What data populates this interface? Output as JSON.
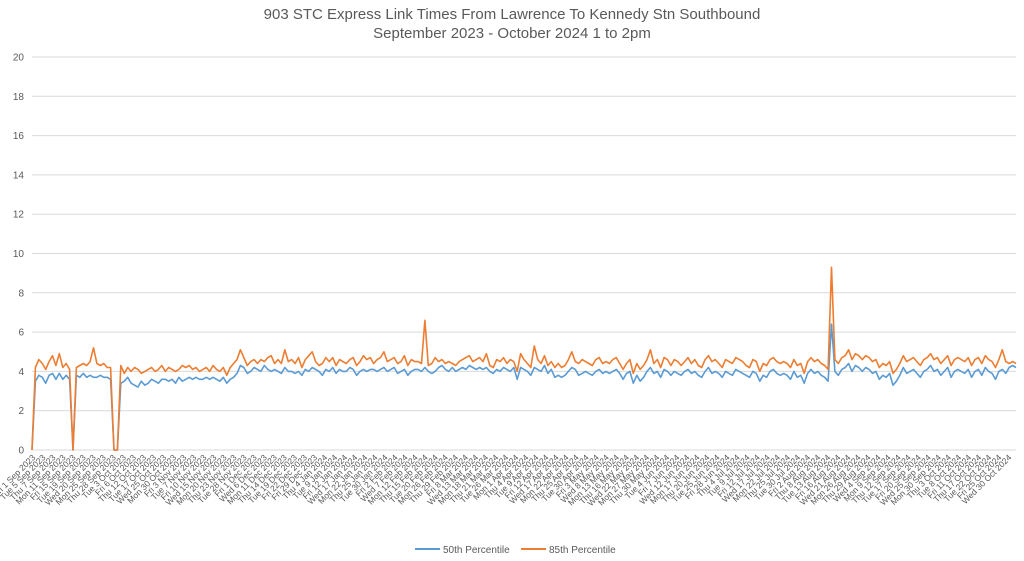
{
  "chart_data": {
    "type": "line",
    "title": "903 STC Express Link Times From Lawrence To Kennedy Stn Southbound",
    "subtitle": "September 2023 - October 2024 1 to 2pm",
    "xlabel": "",
    "ylabel": "",
    "ylim": [
      0,
      20
    ],
    "yticks": [
      "0",
      "2",
      "4",
      "6",
      "8",
      "10",
      "12",
      "14",
      "16",
      "18",
      "20"
    ],
    "grid": true,
    "legend_position": "bottom",
    "x_tick_labels": [
      "Fri 1 Sep 2023",
      "Tue 5 Sep 2023",
      "Thu 7 Sep 2023",
      "Mon 11 Sep 2023",
      "Fri 15 Sep 2023",
      "Tue 19 Sep 2023",
      "Wed 20 Sep 2023",
      "Mon 25 Sep 2023",
      "Thu 28 Sep 2023",
      "Tue 3 Oct 2023",
      "Fri 6 Oct 2023",
      "Thu 12 Oct 2023",
      "Tue 17 Oct 2023",
      "Wed 25 Oct 2023",
      "Mon 30 Oct 2023",
      "Fri 3 Nov 2023",
      "Tue 7 Nov 2023",
      "Fri 10 Nov 2023",
      "Wed 15 Nov 2023",
      "Mon 20 Nov 2023",
      "Thu 23 Nov 2023",
      "Tue 28 Nov 2023",
      "Fri 1 Dec 2023",
      "Wed 6 Dec 2023",
      "Mon 11 Dec 2023",
      "Thu 14 Dec 2023",
      "Tue 19 Dec 2023",
      "Fri 22 Dec 2023",
      "Fri 29 Dec 2023",
      "Thu 4 Jan 2024",
      "Tue 9 Jan 2024",
      "Fri 12 Jan 2024",
      "Wed 17 Jan 2024",
      "Mon 22 Jan 2024",
      "Thu 25 Jan 2024",
      "Tue 30 Jan 2024",
      "Fri 2 Feb 2024",
      "Wed 7 Feb 2024",
      "Mon 12 Feb 2024",
      "Thu 15 Feb 2024",
      "Tue 20 Feb 2024",
      "Mon 26 Feb 2024",
      "Thu 29 Feb 2024",
      "Fri 8 Mar 2024",
      "Wed 13 Mar 2024",
      "Mon 18 Mar 2024",
      "Thu 21 Mar 2024",
      "Tue 26 Mar 2024",
      "Mon 1 Apr 2024",
      "Thu 4 Apr 2024",
      "Tue 9 Apr 2024",
      "Fri 12 Apr 2024",
      "Wed 17 Apr 2024",
      "Mon 22 Apr 2024",
      "Thu 25 Apr 2024",
      "Tue 30 Apr 2024",
      "Fri 3 May 2024",
      "Wed 8 May 2024",
      "Mon 13 May 2024",
      "Thu 16 May 2024",
      "Wed 22 May 2024",
      "Mon 27 May 2024",
      "Thu 30 May 2024",
      "Tue 4 Jun 2024",
      "Fri 7 Jun 2024",
      "Wed 12 Jun 2024",
      "Mon 17 Jun 2024",
      "Thu 20 Jun 2024",
      "Tue 25 Jun 2024",
      "Fri 28 Jun 2024",
      "Thu 4 Jul 2024",
      "Tue 9 Jul 2024",
      "Fri 12 Jul 2024",
      "Wed 17 Jul 2024",
      "Mon 22 Jul 2024",
      "Thu 25 Jul 2024",
      "Tue 30 Jul 2024",
      "Fri 2 Aug 2024",
      "Thu 8 Aug 2024",
      "Tue 13 Aug 2024",
      "Fri 16 Aug 2024",
      "Wed 21 Aug 2024",
      "Mon 26 Aug 2024",
      "Thu 29 Aug 2024",
      "Wed 4 Sep 2024",
      "Mon 9 Sep 2024",
      "Thu 12 Sep 2024",
      "Tue 17 Sep 2024",
      "Fri 20 Sep 2024",
      "Wed 25 Sep 2024",
      "Mon 30 Sep 2024",
      "Thu 3 Oct 2024",
      "Tue 8 Oct 2024",
      "Fri 11 Oct 2024",
      "Thu 17 Oct 2024",
      "Tue 22 Oct 2024",
      "Fri 25 Oct 2024",
      "Wed 30 Oct 2024"
    ],
    "series": [
      {
        "name": "50th Percentile",
        "color": "#5b9bd5",
        "values": [
          0,
          3.5,
          3.8,
          3.7,
          3.4,
          3.8,
          3.9,
          3.6,
          3.9,
          3.6,
          3.8,
          3.6,
          0,
          3.8,
          3.7,
          3.9,
          3.7,
          3.8,
          3.7,
          3.7,
          3.8,
          3.7,
          3.7,
          3.6,
          0,
          0,
          3.4,
          3.5,
          3.7,
          3.4,
          3.3,
          3.2,
          3.5,
          3.3,
          3.4,
          3.6,
          3.5,
          3.4,
          3.6,
          3.6,
          3.5,
          3.6,
          3.4,
          3.7,
          3.5,
          3.6,
          3.7,
          3.6,
          3.7,
          3.6,
          3.6,
          3.7,
          3.6,
          3.7,
          3.6,
          3.5,
          3.7,
          3.4,
          3.6,
          3.7,
          3.9,
          4.3,
          4.2,
          3.9,
          4.0,
          4.2,
          4.1,
          4.0,
          4.3,
          4.1,
          4.0,
          4.1,
          4.0,
          3.9,
          4.2,
          4.0,
          4.0,
          3.9,
          4.0,
          3.8,
          4.1,
          4.0,
          4.2,
          4.1,
          4.0,
          3.8,
          4.1,
          4.0,
          4.2,
          3.9,
          4.1,
          4.0,
          4.0,
          4.2,
          4.1,
          3.8,
          4.0,
          4.1,
          4.0,
          4.1,
          4.1,
          4.0,
          4.1,
          4.2,
          4.0,
          4.1,
          4.2,
          3.9,
          4.0,
          4.1,
          3.8,
          4.0,
          4.1,
          4.1,
          4.0,
          4.2,
          4.0,
          3.9,
          4.0,
          4.2,
          4.3,
          4.1,
          4.0,
          4.2,
          4.0,
          4.1,
          4.2,
          4.1,
          4.3,
          4.2,
          4.1,
          4.2,
          4.1,
          4.2,
          4.0,
          3.9,
          4.1,
          4.0,
          4.2,
          4.1,
          4.0,
          4.2,
          3.6,
          4.2,
          4.1,
          4.0,
          3.8,
          4.2,
          4.1,
          4.0,
          4.3,
          3.9,
          4.1,
          3.7,
          3.8,
          3.7,
          3.8,
          4.0,
          4.2,
          4.1,
          3.8,
          3.9,
          4.0,
          3.9,
          3.8,
          4.0,
          4.1,
          3.9,
          4.0,
          3.9,
          4.0,
          4.1,
          3.9,
          3.6,
          3.9,
          4.0,
          3.4,
          3.8,
          3.5,
          3.7,
          4.0,
          4.2,
          3.9,
          4.0,
          3.7,
          4.1,
          4.0,
          3.8,
          4.0,
          3.9,
          3.8,
          4.0,
          4.1,
          3.9,
          4.0,
          3.8,
          3.7,
          4.0,
          4.2,
          3.9,
          4.0,
          3.9,
          3.7,
          4.0,
          3.9,
          3.8,
          4.1,
          4.0,
          3.9,
          3.8,
          3.7,
          4.0,
          3.9,
          3.5,
          3.8,
          3.7,
          4.0,
          4.1,
          3.9,
          3.8,
          3.9,
          3.8,
          3.6,
          4.0,
          3.7,
          3.8,
          3.4,
          3.9,
          4.1,
          3.9,
          4.0,
          3.8,
          3.7,
          3.5,
          6.4,
          4.0,
          3.8,
          4.1,
          4.2,
          4.4,
          4.0,
          4.3,
          4.2,
          4.0,
          4.2,
          4.1,
          3.9,
          4.0,
          3.6,
          3.8,
          3.7,
          3.9,
          3.3,
          3.5,
          3.8,
          4.2,
          3.9,
          4.0,
          4.1,
          3.9,
          3.7,
          4.0,
          4.1,
          4.3,
          4.0,
          4.1,
          3.8,
          4.0,
          4.2,
          3.7,
          4.0,
          4.1,
          4.0,
          3.9,
          4.1,
          3.7,
          4.0,
          4.1,
          3.8,
          4.2,
          4.0,
          3.9,
          3.6,
          4.0,
          4.1,
          3.9,
          4.2,
          4.3,
          4.2
        ]
      },
      {
        "name": "85th Percentile",
        "color": "#ed7d31",
        "values": [
          0,
          4.2,
          4.6,
          4.4,
          4.1,
          4.5,
          4.8,
          4.3,
          4.9,
          4.2,
          4.4,
          4.1,
          0,
          4.2,
          4.3,
          4.4,
          4.3,
          4.5,
          5.2,
          4.4,
          4.3,
          4.4,
          4.2,
          4.2,
          0,
          0,
          4.3,
          3.9,
          4.2,
          4.0,
          4.2,
          4.1,
          3.9,
          4.0,
          4.1,
          4.2,
          4.0,
          4.1,
          4.3,
          4.0,
          4.2,
          4.1,
          4.0,
          4.1,
          4.3,
          4.2,
          4.3,
          4.1,
          4.2,
          4.0,
          4.1,
          4.2,
          4.0,
          4.3,
          4.1,
          4.0,
          4.2,
          3.8,
          4.2,
          4.4,
          4.6,
          5.1,
          4.7,
          4.3,
          4.5,
          4.6,
          4.4,
          4.6,
          4.5,
          4.7,
          4.8,
          4.4,
          4.6,
          4.4,
          5.1,
          4.5,
          4.6,
          4.4,
          4.7,
          4.2,
          4.6,
          4.8,
          5.0,
          4.5,
          4.3,
          4.4,
          4.7,
          4.5,
          4.7,
          4.3,
          4.6,
          4.5,
          4.4,
          4.6,
          4.7,
          4.3,
          4.5,
          4.8,
          4.6,
          4.7,
          4.4,
          4.6,
          4.7,
          5.0,
          4.5,
          4.6,
          4.7,
          4.4,
          4.5,
          4.8,
          4.3,
          4.6,
          4.5,
          4.5,
          4.4,
          6.6,
          4.3,
          4.4,
          4.7,
          4.5,
          4.6,
          4.4,
          4.5,
          4.4,
          4.3,
          4.5,
          4.6,
          4.7,
          4.8,
          4.5,
          4.6,
          4.7,
          4.5,
          4.9,
          4.3,
          4.2,
          4.6,
          4.5,
          4.7,
          4.4,
          4.6,
          4.5,
          4.0,
          4.9,
          4.6,
          4.4,
          4.2,
          5.3,
          4.6,
          4.4,
          4.8,
          4.3,
          4.5,
          4.2,
          4.4,
          4.2,
          4.3,
          4.6,
          5.0,
          4.5,
          4.4,
          4.6,
          4.5,
          4.4,
          4.3,
          4.6,
          4.7,
          4.4,
          4.5,
          4.4,
          4.6,
          4.7,
          4.4,
          4.1,
          4.4,
          4.6,
          3.9,
          4.4,
          4.1,
          4.3,
          4.6,
          5.1,
          4.4,
          4.6,
          4.2,
          4.7,
          4.6,
          4.3,
          4.6,
          4.5,
          4.3,
          4.5,
          4.7,
          4.4,
          4.6,
          4.3,
          4.2,
          4.6,
          4.8,
          4.5,
          4.6,
          4.4,
          4.2,
          4.6,
          4.5,
          4.4,
          4.7,
          4.6,
          4.5,
          4.3,
          4.2,
          4.6,
          4.5,
          4.0,
          4.4,
          4.3,
          4.6,
          4.7,
          4.5,
          4.4,
          4.5,
          4.4,
          4.2,
          4.6,
          4.3,
          4.4,
          3.9,
          4.5,
          4.7,
          4.5,
          4.6,
          4.4,
          4.3,
          4.1,
          9.3,
          4.6,
          4.4,
          4.7,
          4.8,
          5.1,
          4.6,
          4.9,
          4.8,
          4.6,
          4.8,
          4.7,
          4.5,
          4.6,
          4.2,
          4.4,
          4.3,
          4.5,
          3.9,
          4.1,
          4.4,
          4.8,
          4.5,
          4.6,
          4.7,
          4.5,
          4.3,
          4.6,
          4.7,
          4.9,
          4.6,
          4.7,
          4.4,
          4.6,
          4.8,
          4.3,
          4.6,
          4.7,
          4.6,
          4.5,
          4.7,
          4.3,
          4.6,
          4.7,
          4.4,
          4.8,
          4.6,
          4.5,
          4.2,
          4.6,
          5.1,
          4.5,
          4.4,
          4.5,
          4.4
        ]
      }
    ]
  }
}
